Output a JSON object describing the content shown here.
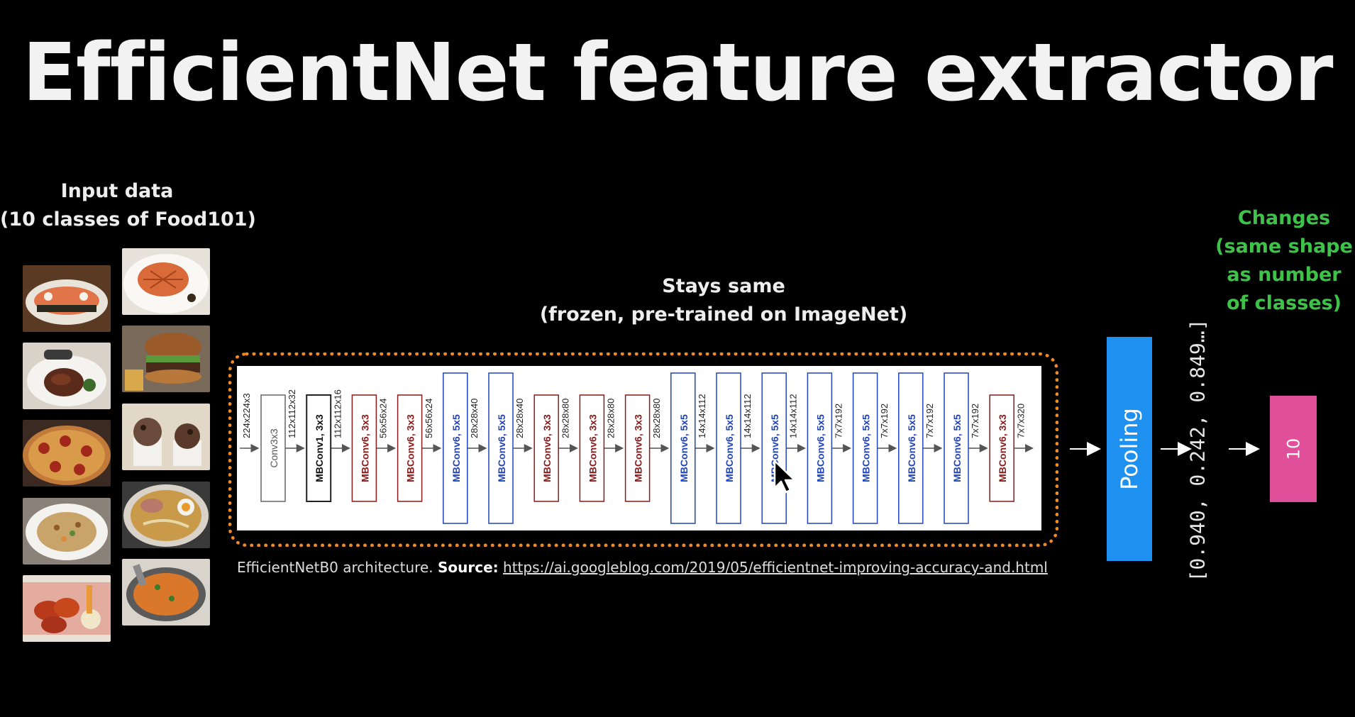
{
  "title": "EfficientNet feature extractor",
  "input": {
    "label_line1": "Input data",
    "label_line2": "(10 classes of Food101)"
  },
  "stays": {
    "line1": "Stays same",
    "line2": "(frozen, pre-trained on ImageNet)"
  },
  "changes": {
    "line1": "Changes",
    "line2": "(same shape",
    "line3": "as number",
    "line4": "of classes)"
  },
  "architecture": {
    "layers": [
      {
        "name": "Conv3x3",
        "type": "conv"
      },
      {
        "name": "MBConv1, 3x3",
        "type": "mb1"
      },
      {
        "name": "MBConv6, 3x3",
        "type": "mb3"
      },
      {
        "name": "MBConv6, 3x3",
        "type": "mb3"
      },
      {
        "name": "MBConv6, 5x5",
        "type": "mb5"
      },
      {
        "name": "MBConv6, 5x5",
        "type": "mb5"
      },
      {
        "name": "MBConv6, 3x3",
        "type": "mb3"
      },
      {
        "name": "MBConv6, 3x3",
        "type": "mb3"
      },
      {
        "name": "MBConv6, 3x3",
        "type": "mb3"
      },
      {
        "name": "MBConv6, 5x5",
        "type": "mb5"
      },
      {
        "name": "MBConv6, 5x5",
        "type": "mb5"
      },
      {
        "name": "MBConv6, 5x5",
        "type": "mb5"
      },
      {
        "name": "MBConv6, 5x5",
        "type": "mb5"
      },
      {
        "name": "MBConv6, 5x5",
        "type": "mb5"
      },
      {
        "name": "MBConv6, 5x5",
        "type": "mb5"
      },
      {
        "name": "MBConv6, 5x5",
        "type": "mb5"
      },
      {
        "name": "MBConv6, 3x3",
        "type": "mb3"
      }
    ],
    "dims": [
      "224x224x3",
      "112x112x32",
      "112x112x16",
      "56x56x24",
      "56x56x24",
      "28x28x40",
      "28x28x40",
      "28x28x80",
      "28x28x80",
      "28x28x80",
      "14x14x112",
      "14x14x112",
      "14x14x112",
      "7x7x192",
      "7x7x192",
      "7x7x192",
      "7x7x192",
      "7x7x320"
    ]
  },
  "source": {
    "prefix": "EfficientNetB0 architecture. ",
    "label": "Source:",
    "url": "https://ai.googleblog.com/2019/05/efficientnet-improving-accuracy-and.html"
  },
  "pooling_label": "Pooling",
  "vector_text": "[0.940, 0.242, 0.849…]",
  "output_label": "10",
  "colors": {
    "frozen_border": "#f08a24",
    "pooling": "#1e90f0",
    "output": "#e0509a",
    "changes": "#3ec24a",
    "mb3": "#8b1a1a",
    "mb5": "#2244bb"
  },
  "icons": {
    "cursor": "mouse-pointer-icon"
  }
}
